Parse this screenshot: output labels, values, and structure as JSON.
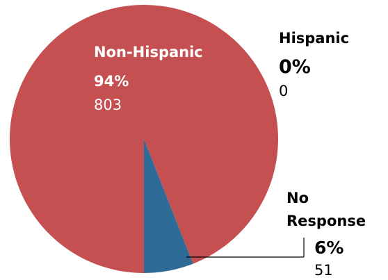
{
  "chart_data": {
    "type": "pie",
    "title": "",
    "slices": [
      {
        "label": "Non-Hispanic",
        "percent_label": "94%",
        "count_label": "803",
        "value": 803,
        "color": "#c55052"
      },
      {
        "label": "Hispanic",
        "percent_label": "0%",
        "count_label": "0",
        "value": 0,
        "color": "#c55052"
      },
      {
        "label": "No Response",
        "label_lines": [
          "No",
          "Response"
        ],
        "percent_label": "6%",
        "count_label": "51",
        "value": 51,
        "color": "#2e6b96"
      }
    ],
    "label_colors": {
      "inside": "#ffffff",
      "outside": "#000000"
    },
    "leader_line_color": "#000000"
  }
}
